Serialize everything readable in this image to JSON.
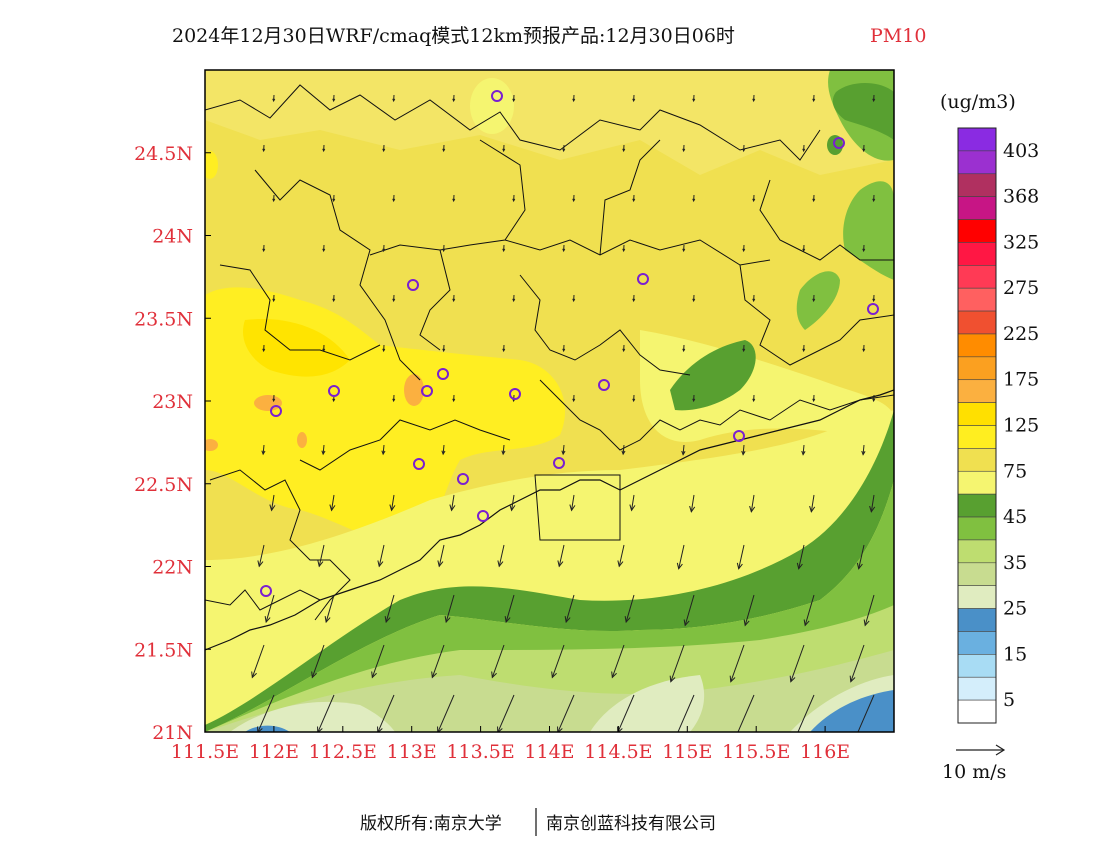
{
  "title": {
    "main": "2024年12月30日WRF/cmaq模式12km预报产品:12月30日06时",
    "variable": "PM10"
  },
  "map": {
    "lon_range": [
      111.5,
      116.5
    ],
    "lat_range": [
      21.0,
      25.0
    ],
    "x_ticks": [
      "111.5E",
      "112E",
      "112.5E",
      "113E",
      "113.5E",
      "114E",
      "114.5E",
      "115E",
      "115.5E",
      "116E"
    ],
    "x_tick_values": [
      111.5,
      112.0,
      112.5,
      113.0,
      113.5,
      114.0,
      114.5,
      115.0,
      115.5,
      116.0
    ],
    "y_ticks": [
      "21N",
      "21.5N",
      "22N",
      "22.5N",
      "23N",
      "23.5N",
      "24N",
      "24.5N"
    ],
    "y_tick_values": [
      21.0,
      21.5,
      22.0,
      22.5,
      23.0,
      23.5,
      24.0,
      24.5
    ],
    "wind_direction": "NE to SW"
  },
  "legend": {
    "unit": "(ug/m3)",
    "labels": [
      "403",
      "368",
      "325",
      "275",
      "225",
      "175",
      "125",
      "75",
      "45",
      "35",
      "25",
      "15",
      "5"
    ],
    "colors": [
      "#8a2be2",
      "#9b30d0",
      "#b03060",
      "#c71585",
      "#ff0000",
      "#ff1744",
      "#ff3a55",
      "#ff6060",
      "#f05030",
      "#ff8c00",
      "#fba020",
      "#fbb040",
      "#ffe000",
      "#ffee20",
      "#f0e050",
      "#f5f570",
      "#58a030",
      "#80c040",
      "#bedd70",
      "#c8dc90",
      "#e0ecc0",
      "#4a90c8",
      "#6ab0e0",
      "#a8dcf4",
      "#d4eefb",
      "#ffffff"
    ]
  },
  "wind_scale": {
    "label": "10 m/s"
  },
  "footer": {
    "copyright": "版权所有:南京大学",
    "company": "南京创蓝科技有限公司"
  }
}
